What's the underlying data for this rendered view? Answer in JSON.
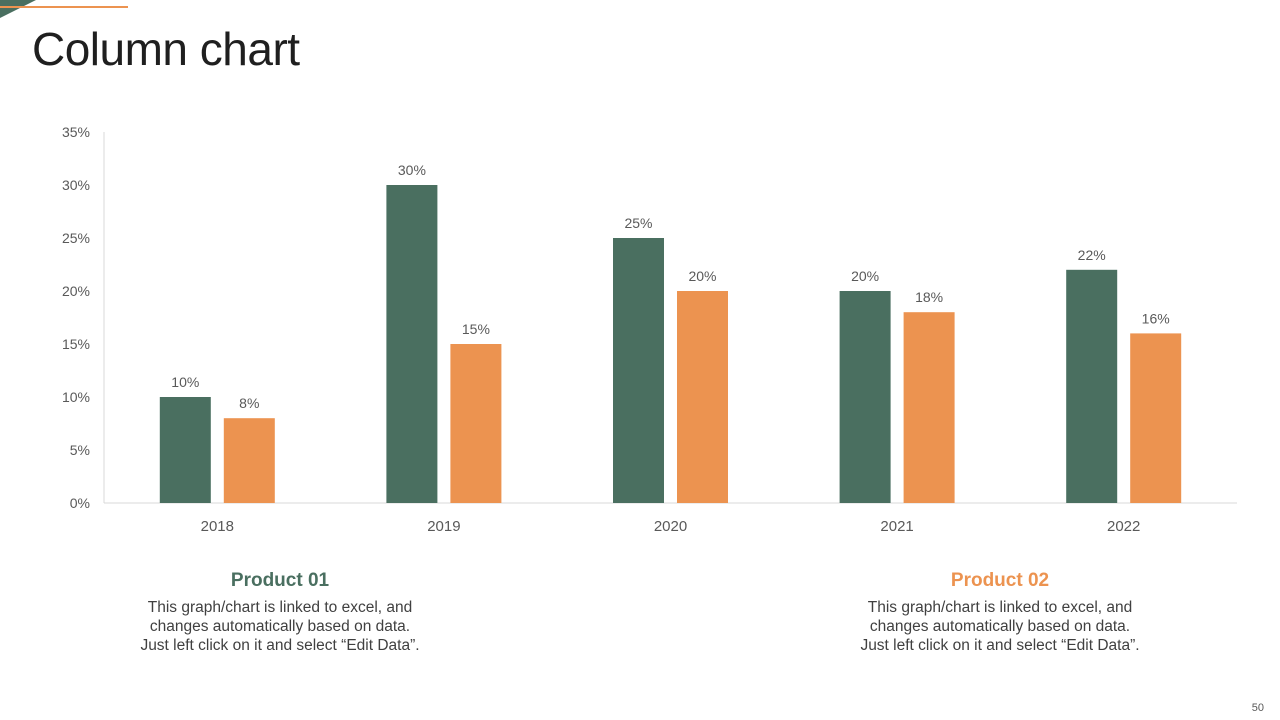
{
  "page": {
    "title": "Column chart",
    "page_number": "50"
  },
  "colors": {
    "product_01": "#4a6f60",
    "product_02": "#ec9350",
    "axis_text": "#595959",
    "gridline": "#d9d9d9"
  },
  "legend": [
    {
      "title": "Product 01",
      "color": "#4a6f60",
      "description": "This graph/chart is linked to excel, and\nchanges automatically based on data.\nJust left click on it and select “Edit Data”."
    },
    {
      "title": "Product 02",
      "color": "#ec9350",
      "description": "This graph/chart is linked to excel, and\nchanges automatically based on data.\nJust left click on it and select “Edit Data”."
    }
  ],
  "chart_data": {
    "type": "bar",
    "title": "",
    "xlabel": "",
    "ylabel": "",
    "categories": [
      "2018",
      "2019",
      "2020",
      "2021",
      "2022"
    ],
    "series": [
      {
        "name": "Product 01",
        "values": [
          10,
          30,
          25,
          20,
          22
        ],
        "labels": [
          "10%",
          "30%",
          "25%",
          "20%",
          "22%"
        ]
      },
      {
        "name": "Product 02",
        "values": [
          8,
          15,
          20,
          18,
          16
        ],
        "labels": [
          "8%",
          "15%",
          "20%",
          "18%",
          "16%"
        ]
      }
    ],
    "ylim": [
      0,
      35
    ],
    "yticks": [
      0,
      5,
      10,
      15,
      20,
      25,
      30,
      35
    ],
    "ytick_labels": [
      "0%",
      "5%",
      "10%",
      "15%",
      "20%",
      "25%",
      "30%",
      "35%"
    ],
    "grid": false
  }
}
